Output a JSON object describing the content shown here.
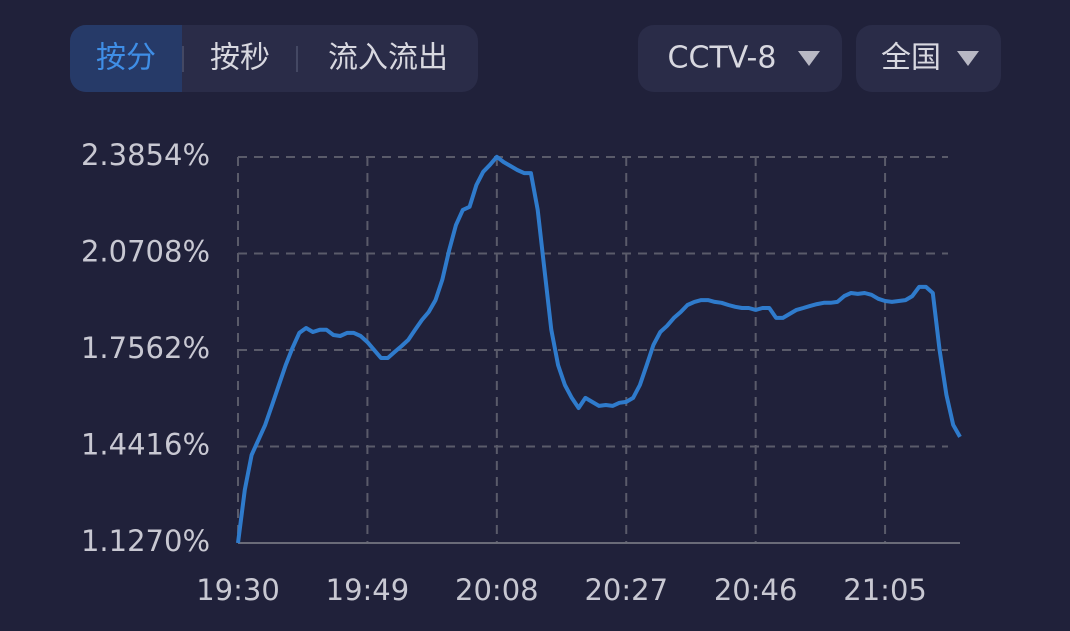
{
  "tabs": [
    "按分",
    "按秒",
    "流入流出"
  ],
  "selectors": [
    "CCTV-8",
    "全国"
  ],
  "chart_data": {
    "type": "line",
    "color": "#2f7bcc",
    "grid": true,
    "x": [
      1170,
      1171,
      1172,
      1173,
      1174,
      1175,
      1176,
      1177,
      1178,
      1179,
      1180,
      1181,
      1182,
      1183,
      1184,
      1185,
      1186,
      1187,
      1188,
      1189,
      1190,
      1191,
      1192,
      1193,
      1194,
      1195,
      1196,
      1197,
      1198,
      1199,
      1200,
      1201,
      1202,
      1203,
      1204,
      1205,
      1206,
      1207,
      1208,
      1209,
      1210,
      1211,
      1212,
      1213,
      1214,
      1215,
      1216,
      1217,
      1218,
      1219,
      1220,
      1221,
      1222,
      1223,
      1224,
      1225,
      1226,
      1227,
      1228,
      1229,
      1230,
      1231,
      1232,
      1233,
      1234,
      1235,
      1236,
      1237,
      1238,
      1239,
      1240,
      1241,
      1242,
      1243,
      1244,
      1245,
      1246,
      1247,
      1248,
      1249,
      1250,
      1251,
      1252,
      1253,
      1254,
      1255,
      1256,
      1257,
      1258,
      1259,
      1260,
      1261,
      1262,
      1263,
      1264,
      1265,
      1266,
      1267,
      1268,
      1269,
      1270,
      1271,
      1272,
      1273,
      1274,
      1275,
      1276
    ],
    "values": [
      1.127,
      1.3,
      1.414,
      1.463,
      1.512,
      1.577,
      1.642,
      1.707,
      1.763,
      1.812,
      1.828,
      1.815,
      1.822,
      1.822,
      1.805,
      1.802,
      1.812,
      1.812,
      1.802,
      1.782,
      1.756,
      1.73,
      1.73,
      1.75,
      1.769,
      1.789,
      1.822,
      1.854,
      1.88,
      1.919,
      1.985,
      2.082,
      2.164,
      2.213,
      2.223,
      2.294,
      2.337,
      2.36,
      2.386,
      2.369,
      2.356,
      2.343,
      2.333,
      2.333,
      2.213,
      2.017,
      1.822,
      1.707,
      1.642,
      1.6,
      1.567,
      1.6,
      1.587,
      1.574,
      1.577,
      1.574,
      1.584,
      1.587,
      1.6,
      1.642,
      1.707,
      1.773,
      1.815,
      1.835,
      1.861,
      1.88,
      1.903,
      1.913,
      1.919,
      1.919,
      1.913,
      1.91,
      1.903,
      1.897,
      1.893,
      1.893,
      1.887,
      1.893,
      1.893,
      1.861,
      1.861,
      1.874,
      1.887,
      1.893,
      1.9,
      1.906,
      1.91,
      1.91,
      1.913,
      1.932,
      1.942,
      1.939,
      1.942,
      1.936,
      1.923,
      1.916,
      1.913,
      1.916,
      1.919,
      1.932,
      1.962,
      1.962,
      1.942,
      1.756,
      1.61,
      1.512,
      1.473
    ],
    "xlim": [
      1170,
      1276
    ],
    "xticks": [
      {
        "value": 1170,
        "label": "19:30"
      },
      {
        "value": 1189,
        "label": "19:49"
      },
      {
        "value": 1208,
        "label": "20:08"
      },
      {
        "value": 1227,
        "label": "20:27"
      },
      {
        "value": 1246,
        "label": "20:46"
      },
      {
        "value": 1265,
        "label": "21:05"
      }
    ],
    "ylim": [
      1.127,
      2.3854
    ],
    "yticks": [
      {
        "value": 1.127,
        "label": "1.1270%"
      },
      {
        "value": 1.4416,
        "label": "1.4416%"
      },
      {
        "value": 1.7562,
        "label": "1.7562%"
      },
      {
        "value": 2.0708,
        "label": "2.0708%"
      },
      {
        "value": 2.3854,
        "label": "2.3854%"
      }
    ]
  }
}
